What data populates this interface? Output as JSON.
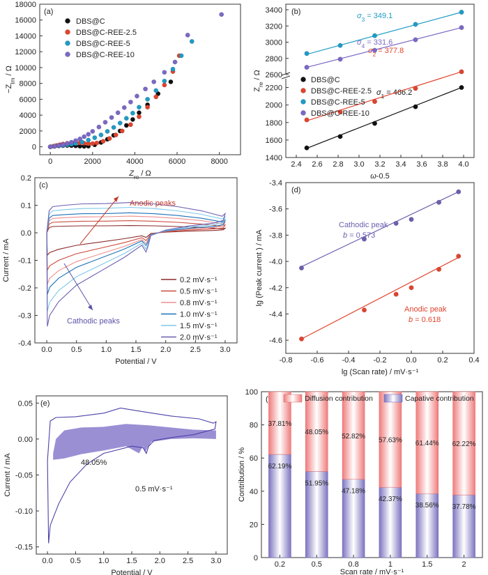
{
  "chart_data": [
    {
      "id": "a",
      "type": "scatter",
      "panel_label": "(a)",
      "xlabel": "Z",
      "xlabel_sub": "re",
      "xlabel_unit": " / Ω",
      "ylabel": "−Z",
      "ylabel_sub": "Im",
      "ylabel_unit": " / Ω",
      "xlim": [
        -500,
        9000
      ],
      "ylim": [
        -1000,
        18000
      ],
      "xticks": [
        0,
        2000,
        4000,
        6000,
        8000
      ],
      "yticks": [
        0,
        2000,
        4000,
        6000,
        8000,
        10000,
        12000,
        14000,
        16000,
        18000
      ],
      "legend": "top-left",
      "series": [
        {
          "name": "DBS@C",
          "color": "#111111",
          "x": [
            0,
            200,
            400,
            600,
            800,
            1000,
            1200,
            1400,
            1600,
            1800,
            2100,
            2400,
            2700,
            3000,
            3300,
            3600,
            3900,
            4200,
            4600,
            5100,
            5700
          ],
          "y": [
            0,
            60,
            110,
            150,
            170,
            160,
            120,
            80,
            60,
            80,
            250,
            550,
            950,
            1450,
            2000,
            2700,
            3450,
            4300,
            5300,
            6700,
            8200
          ]
        },
        {
          "name": "DBS@C-REE-2.5",
          "color": "#e0442e",
          "x": [
            0,
            150,
            300,
            450,
            600,
            800,
            1000,
            1200,
            1400,
            1600,
            1800,
            2000,
            2200,
            2500,
            2800,
            3100,
            3400,
            3800,
            4200,
            4600,
            5000,
            5400,
            5800,
            6100
          ],
          "y": [
            0,
            80,
            170,
            260,
            350,
            440,
            500,
            520,
            500,
            450,
            400,
            400,
            480,
            700,
            1050,
            1500,
            2000,
            2800,
            3800,
            5000,
            6300,
            7800,
            9500,
            11500
          ]
        },
        {
          "name": "DBS@C-REE-5",
          "color": "#1f9bc6",
          "x": [
            0,
            200,
            400,
            600,
            800,
            1000,
            1200,
            1500,
            1800,
            2100,
            2400,
            2700,
            3000,
            3300,
            3600,
            3900,
            4200,
            4600,
            5000,
            5400,
            5800,
            6200,
            6700
          ],
          "y": [
            0,
            60,
            120,
            180,
            250,
            330,
            420,
            600,
            850,
            1150,
            1500,
            1950,
            2450,
            3000,
            3600,
            4250,
            5000,
            6000,
            7100,
            8300,
            9800,
            11500,
            13300
          ]
        },
        {
          "name": "DBS@C-REE-10",
          "color": "#7b68c4",
          "x": [
            0,
            200,
            400,
            600,
            800,
            1000,
            1200,
            1400,
            1600,
            1800,
            2000,
            2300,
            2600,
            2900,
            3200,
            3500,
            3800,
            4100,
            4500,
            4900,
            5400,
            5900,
            6500,
            8100
          ],
          "y": [
            0,
            80,
            170,
            280,
            410,
            580,
            780,
            1000,
            1280,
            1580,
            1950,
            2500,
            3100,
            3700,
            4300,
            4950,
            5650,
            6400,
            7300,
            8200,
            9400,
            10700,
            14100,
            16700
          ]
        }
      ]
    },
    {
      "id": "b",
      "type": "line",
      "panel_label": "(b)",
      "xlabel": "ω",
      "xlabel_sup": "-0.5",
      "ylabel": "Z",
      "ylabel_sub": "re",
      "ylabel_unit": " / Ω",
      "xlim": [
        2.3,
        4.1
      ],
      "xticks": [
        2.4,
        2.6,
        2.8,
        3.0,
        3.2,
        3.4,
        3.6,
        3.8,
        4.0
      ],
      "y_lower": [
        1400,
        2300
      ],
      "y_upper": [
        2600,
        3400
      ],
      "yticks_lower": [
        1400,
        1600,
        1800,
        2000,
        2200
      ],
      "yticks_upper": [
        2600,
        2800,
        3000,
        3200,
        3400
      ],
      "legend": "center-left",
      "series": [
        {
          "name": "DBS@C",
          "color": "#111111",
          "x": [
            2.5,
            2.82,
            3.15,
            3.54,
            3.98
          ],
          "y": [
            1510,
            1640,
            1790,
            1980,
            2200
          ],
          "fit": [
            1505,
            2200
          ],
          "sigma_sub": "1",
          "sigma_value": "466.2"
        },
        {
          "name": "DBS@C-REE-2.5",
          "color": "#e0442e",
          "x": [
            2.5,
            2.82,
            3.15,
            3.54,
            3.98
          ],
          "y": [
            1830,
            1920,
            2040,
            2190,
            2380
          ],
          "fit": [
            1820,
            2380
          ],
          "sigma_sub": "2",
          "sigma_value": "377.8"
        },
        {
          "name": "DBS@C-REE-5",
          "color": "#1f9bc6",
          "x": [
            2.5,
            2.82,
            3.15,
            3.54,
            3.98
          ],
          "y": [
            2860,
            2960,
            3080,
            3220,
            3370
          ],
          "fit": [
            2850,
            3370
          ],
          "sigma_sub": "3",
          "sigma_value": "349.1"
        },
        {
          "name": "DBS@C-REE-10",
          "color": "#7b68c4",
          "x": [
            2.5,
            2.82,
            3.15,
            3.54,
            3.98
          ],
          "y": [
            2690,
            2790,
            2900,
            3030,
            3180
          ],
          "fit": [
            2690,
            3180
          ],
          "sigma_sub": "4",
          "sigma_value": "331.6"
        }
      ]
    },
    {
      "id": "c",
      "type": "line",
      "panel_label": "(c)",
      "xlabel": "Potential / V",
      "ylabel": "Current / mA",
      "xlim": [
        -0.2,
        3.2
      ],
      "ylim": [
        -0.4,
        0.2
      ],
      "xticks": [
        0.0,
        0.5,
        1.0,
        1.5,
        2.0,
        2.5,
        3.0
      ],
      "yticks": [
        -0.4,
        -0.3,
        -0.2,
        -0.1,
        0.0,
        0.1,
        0.2
      ],
      "legend": "bottom-right",
      "annotations": [
        "Anodic peaks",
        "Cathodic peaks"
      ],
      "series": [
        {
          "name": "0.2 mV·s⁻¹",
          "color": "#8b2a2a",
          "scale": 0.24
        },
        {
          "name": "0.5 mV·s⁻¹",
          "color": "#cc4a3c",
          "scale": 0.4
        },
        {
          "name": "0.8 mV·s⁻¹",
          "color": "#ee8f8f",
          "scale": 0.55
        },
        {
          "name": "1.0 mV·s⁻¹",
          "color": "#1d72b8",
          "scale": 0.66
        },
        {
          "name": "1.5 mV·s⁻¹",
          "color": "#7ec9ea",
          "scale": 0.84
        },
        {
          "name": "2.0 mV·s⁻¹",
          "color": "#6b5fb0",
          "scale": 1.0
        }
      ]
    },
    {
      "id": "d",
      "type": "scatter",
      "panel_label": "(d)",
      "xlabel": "lg (Scan rate) / mV·s⁻¹",
      "ylabel": "lg (Peak current ) / mA",
      "xlim": [
        -0.8,
        0.4
      ],
      "ylim": [
        -4.7,
        -3.4
      ],
      "xticks": [
        -0.8,
        -0.6,
        -0.4,
        -0.2,
        0.0,
        0.2,
        0.4
      ],
      "yticks": [
        -4.6,
        -4.4,
        -4.2,
        -4.0,
        -3.8,
        -3.6,
        -3.4
      ],
      "series": [
        {
          "name": "Cathodic peak",
          "b_label": "b = 0.573",
          "color": "#6b5fb0",
          "x": [
            -0.7,
            -0.3,
            -0.097,
            0.0,
            0.176,
            0.301
          ],
          "y": [
            -4.05,
            -3.83,
            -3.71,
            -3.68,
            -3.55,
            -3.47
          ],
          "fit": [
            -4.04,
            -3.47
          ]
        },
        {
          "name": "Anodic peak",
          "b_label": "b = 0.618",
          "color": "#e0442e",
          "x": [
            -0.7,
            -0.3,
            -0.097,
            0.0,
            0.176,
            0.301
          ],
          "y": [
            -4.59,
            -4.37,
            -4.25,
            -4.2,
            -4.06,
            -3.96
          ],
          "fit": [
            -4.59,
            -3.97
          ]
        }
      ]
    },
    {
      "id": "e",
      "type": "area",
      "panel_label": "(e)",
      "xlabel": "Potential / V",
      "ylabel": "Current / mA",
      "xlim": [
        -0.2,
        3.2
      ],
      "ylim": [
        -0.16,
        0.06
      ],
      "xticks": [
        0.0,
        0.5,
        1.0,
        1.5,
        2.0,
        2.5,
        3.0
      ],
      "yticks": [
        -0.15,
        -0.1,
        -0.05,
        0.0,
        0.05
      ],
      "fill_label": "48.05%",
      "rate_label": "0.5 mV·s⁻¹",
      "colors": {
        "outline": "#4a40a8",
        "fill": "#9b8fd4"
      }
    },
    {
      "id": "f",
      "type": "bar",
      "panel_label": "(f)",
      "xlabel": "Scan rate / mV·s⁻¹",
      "ylabel": "Contribution / %",
      "ylim": [
        0,
        100
      ],
      "yticks": [
        0,
        20,
        40,
        60,
        80,
        100
      ],
      "categories": [
        "0.2",
        "0.5",
        "0.8",
        "1",
        "1.5",
        "2"
      ],
      "series": [
        {
          "name": "Capative contribution",
          "color": "#8f86c8",
          "values": [
            62.19,
            51.95,
            47.18,
            42.37,
            38.56,
            37.78
          ],
          "labels": [
            "62.19%",
            "51.95%",
            "47.18%",
            "42.37%",
            "38.56%",
            "37.78%"
          ]
        },
        {
          "name": "Diffusion contribution",
          "color": "#f08c8c",
          "values": [
            37.81,
            48.05,
            52.82,
            57.63,
            61.44,
            62.22
          ],
          "labels": [
            "37.81%",
            "48.05%",
            "52.82%",
            "57.63%",
            "61.44%",
            "62.22%"
          ]
        }
      ]
    }
  ]
}
